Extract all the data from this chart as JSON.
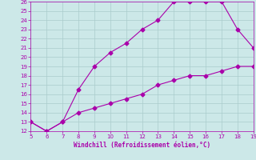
{
  "upper_x": [
    5,
    6,
    7,
    8,
    9,
    10,
    11,
    12,
    13,
    14,
    15,
    16,
    17,
    18,
    19
  ],
  "upper_y": [
    13,
    12,
    13,
    16.5,
    19,
    20.5,
    21.5,
    23,
    24,
    26,
    26,
    26,
    26,
    23,
    21
  ],
  "lower_x": [
    5,
    6,
    7,
    8,
    9,
    10,
    11,
    12,
    13,
    14,
    15,
    16,
    17,
    18,
    19
  ],
  "lower_y": [
    13,
    12,
    13,
    14,
    14.5,
    15,
    15.5,
    16,
    17,
    17.5,
    18,
    18,
    18.5,
    19,
    19
  ],
  "line_color": "#aa00aa",
  "marker": "D",
  "marker_size": 2.5,
  "bg_color": "#cce8e8",
  "grid_color": "#aacccc",
  "xlabel": "Windchill (Refroidissement éolien,°C)",
  "xlabel_color": "#aa00aa",
  "tick_color": "#aa00aa",
  "xlim": [
    5,
    19
  ],
  "ylim": [
    12,
    26
  ],
  "xticks": [
    5,
    6,
    7,
    8,
    9,
    10,
    11,
    12,
    13,
    14,
    15,
    16,
    17,
    18,
    19
  ],
  "yticks": [
    12,
    13,
    14,
    15,
    16,
    17,
    18,
    19,
    20,
    21,
    22,
    23,
    24,
    25,
    26
  ]
}
